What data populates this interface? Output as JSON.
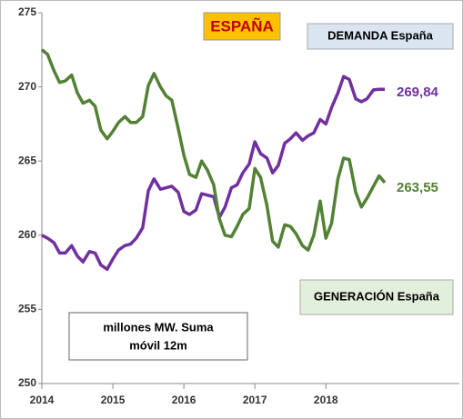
{
  "chart_data": {
    "type": "line",
    "title": "ESPAÑA",
    "note": [
      "millones MW. Suma",
      "móvil 12m"
    ],
    "x": [
      2014,
      2014.08,
      2014.17,
      2014.25,
      2014.33,
      2014.42,
      2014.5,
      2014.58,
      2014.67,
      2014.75,
      2014.83,
      2014.92,
      2015,
      2015.08,
      2015.17,
      2015.25,
      2015.33,
      2015.42,
      2015.5,
      2015.58,
      2015.67,
      2015.75,
      2015.83,
      2015.92,
      2016,
      2016.08,
      2016.17,
      2016.25,
      2016.33,
      2016.42,
      2016.5,
      2016.58,
      2016.67,
      2016.75,
      2016.83,
      2016.92,
      2017,
      2017.08,
      2017.17,
      2017.25,
      2017.33,
      2017.42,
      2017.5,
      2017.58,
      2017.67,
      2017.75,
      2017.83,
      2017.92,
      2018,
      2018.08,
      2018.17,
      2018.25,
      2018.33,
      2018.42,
      2018.5,
      2018.58,
      2018.67,
      2018.75,
      2018.83
    ],
    "series": [
      {
        "name": "DEMANDA España",
        "color": "#7030a0",
        "box_color": "#dbe5f1",
        "end_label": "269,84",
        "values": [
          260.0,
          259.8,
          259.5,
          258.8,
          258.8,
          259.3,
          258.6,
          258.2,
          258.9,
          258.8,
          258.0,
          257.7,
          258.4,
          259.0,
          259.3,
          259.4,
          259.8,
          260.5,
          263.0,
          263.8,
          263.1,
          263.2,
          263.3,
          262.9,
          261.6,
          261.4,
          261.7,
          262.8,
          262.7,
          262.6,
          261.2,
          261.9,
          263.2,
          263.4,
          264.2,
          264.8,
          266.3,
          265.5,
          265.2,
          264.2,
          264.7,
          266.2,
          266.5,
          266.9,
          266.4,
          266.7,
          266.9,
          267.8,
          267.5,
          268.6,
          269.6,
          270.7,
          270.5,
          269.2,
          269.0,
          269.2,
          269.8,
          269.84,
          269.84
        ]
      },
      {
        "name": "GENERACIÓN España",
        "color": "#538135",
        "box_color": "#e2efda",
        "end_label": "263,55",
        "values": [
          272.5,
          272.2,
          271.1,
          270.3,
          270.4,
          270.8,
          269.6,
          268.9,
          269.1,
          268.7,
          267.1,
          266.5,
          267.0,
          267.6,
          268.0,
          267.6,
          267.6,
          268.0,
          270.1,
          270.9,
          270.0,
          269.4,
          269.1,
          267.2,
          265.4,
          264.1,
          263.9,
          265.0,
          264.4,
          263.4,
          261.1,
          260.0,
          259.9,
          260.6,
          261.4,
          261.8,
          264.5,
          263.9,
          262.0,
          259.6,
          259.2,
          260.7,
          260.6,
          260.1,
          259.3,
          259.0,
          260.0,
          262.3,
          259.8,
          260.8,
          263.8,
          265.2,
          265.1,
          262.9,
          261.9,
          262.5,
          263.3,
          264.0,
          263.55
        ]
      }
    ],
    "xlim": [
      2014,
      2019.88
    ],
    "xticks": [
      2014,
      2015,
      2016,
      2017,
      2018
    ],
    "ylim": [
      250,
      275
    ],
    "yticks": [
      250,
      255,
      260,
      265,
      270,
      275
    ],
    "grid": false
  }
}
